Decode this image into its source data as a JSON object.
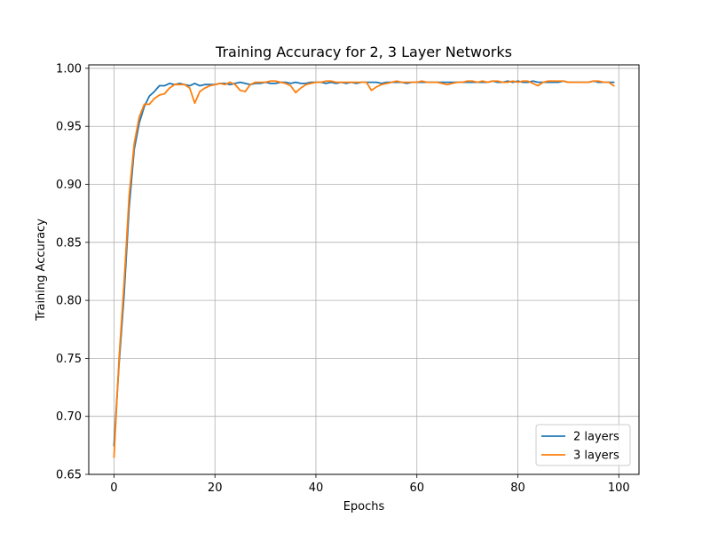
{
  "chart_data": {
    "type": "line",
    "title": "Training Accuracy for 2, 3 Layer Networks",
    "xlabel": "Epochs",
    "ylabel": "Training Accuracy",
    "xlim": [
      -5,
      104
    ],
    "ylim": [
      0.65,
      1.003
    ],
    "xticks": [
      0,
      20,
      40,
      60,
      80,
      100
    ],
    "yticks": [
      0.65,
      0.7,
      0.75,
      0.8,
      0.85,
      0.9,
      0.95,
      1.0
    ],
    "ytick_labels": [
      "0.65",
      "0.70",
      "0.75",
      "0.80",
      "0.85",
      "0.90",
      "0.95",
      "1.00"
    ],
    "grid": true,
    "legend_position": "lower-right",
    "x": [
      0,
      1,
      2,
      3,
      4,
      5,
      6,
      7,
      8,
      9,
      10,
      11,
      12,
      13,
      14,
      15,
      16,
      17,
      18,
      19,
      20,
      21,
      22,
      23,
      24,
      25,
      26,
      27,
      28,
      29,
      30,
      31,
      32,
      33,
      34,
      35,
      36,
      37,
      38,
      39,
      40,
      41,
      42,
      43,
      44,
      45,
      46,
      47,
      48,
      49,
      50,
      51,
      52,
      53,
      54,
      55,
      56,
      57,
      58,
      59,
      60,
      61,
      62,
      63,
      64,
      65,
      66,
      67,
      68,
      69,
      70,
      71,
      72,
      73,
      74,
      75,
      76,
      77,
      78,
      79,
      80,
      81,
      82,
      83,
      84,
      85,
      86,
      87,
      88,
      89,
      90,
      91,
      92,
      93,
      94,
      95,
      96,
      97,
      98,
      99
    ],
    "series": [
      {
        "name": "2 layers",
        "color": "#1f77b4",
        "values": [
          0.675,
          0.745,
          0.805,
          0.88,
          0.93,
          0.953,
          0.967,
          0.976,
          0.98,
          0.985,
          0.985,
          0.987,
          0.986,
          0.987,
          0.986,
          0.985,
          0.987,
          0.985,
          0.986,
          0.986,
          0.986,
          0.987,
          0.987,
          0.986,
          0.987,
          0.988,
          0.987,
          0.986,
          0.987,
          0.987,
          0.988,
          0.987,
          0.987,
          0.988,
          0.988,
          0.987,
          0.988,
          0.987,
          0.987,
          0.988,
          0.988,
          0.988,
          0.987,
          0.988,
          0.987,
          0.988,
          0.987,
          0.988,
          0.987,
          0.988,
          0.988,
          0.988,
          0.988,
          0.987,
          0.988,
          0.988,
          0.988,
          0.988,
          0.987,
          0.988,
          0.988,
          0.988,
          0.988,
          0.988,
          0.988,
          0.988,
          0.988,
          0.988,
          0.988,
          0.988,
          0.988,
          0.988,
          0.988,
          0.988,
          0.988,
          0.989,
          0.988,
          0.988,
          0.989,
          0.988,
          0.989,
          0.988,
          0.988,
          0.989,
          0.988,
          0.988,
          0.988,
          0.988,
          0.988,
          0.989,
          0.988,
          0.988,
          0.988,
          0.988,
          0.988,
          0.989,
          0.988,
          0.988,
          0.988,
          0.988
        ]
      },
      {
        "name": "3 layers",
        "color": "#ff7f0e",
        "values": [
          0.665,
          0.75,
          0.815,
          0.89,
          0.935,
          0.958,
          0.969,
          0.969,
          0.974,
          0.977,
          0.978,
          0.983,
          0.986,
          0.986,
          0.986,
          0.983,
          0.97,
          0.98,
          0.983,
          0.985,
          0.986,
          0.987,
          0.986,
          0.988,
          0.986,
          0.981,
          0.98,
          0.986,
          0.988,
          0.988,
          0.988,
          0.989,
          0.989,
          0.988,
          0.987,
          0.985,
          0.979,
          0.983,
          0.986,
          0.987,
          0.988,
          0.988,
          0.989,
          0.989,
          0.988,
          0.988,
          0.988,
          0.988,
          0.988,
          0.988,
          0.988,
          0.981,
          0.984,
          0.986,
          0.987,
          0.988,
          0.989,
          0.988,
          0.988,
          0.988,
          0.988,
          0.989,
          0.988,
          0.988,
          0.988,
          0.987,
          0.986,
          0.987,
          0.988,
          0.988,
          0.989,
          0.989,
          0.988,
          0.989,
          0.988,
          0.989,
          0.989,
          0.988,
          0.988,
          0.989,
          0.988,
          0.989,
          0.989,
          0.987,
          0.985,
          0.988,
          0.989,
          0.989,
          0.989,
          0.989,
          0.988,
          0.988,
          0.988,
          0.988,
          0.988,
          0.989,
          0.989,
          0.988,
          0.988,
          0.985
        ]
      }
    ]
  }
}
